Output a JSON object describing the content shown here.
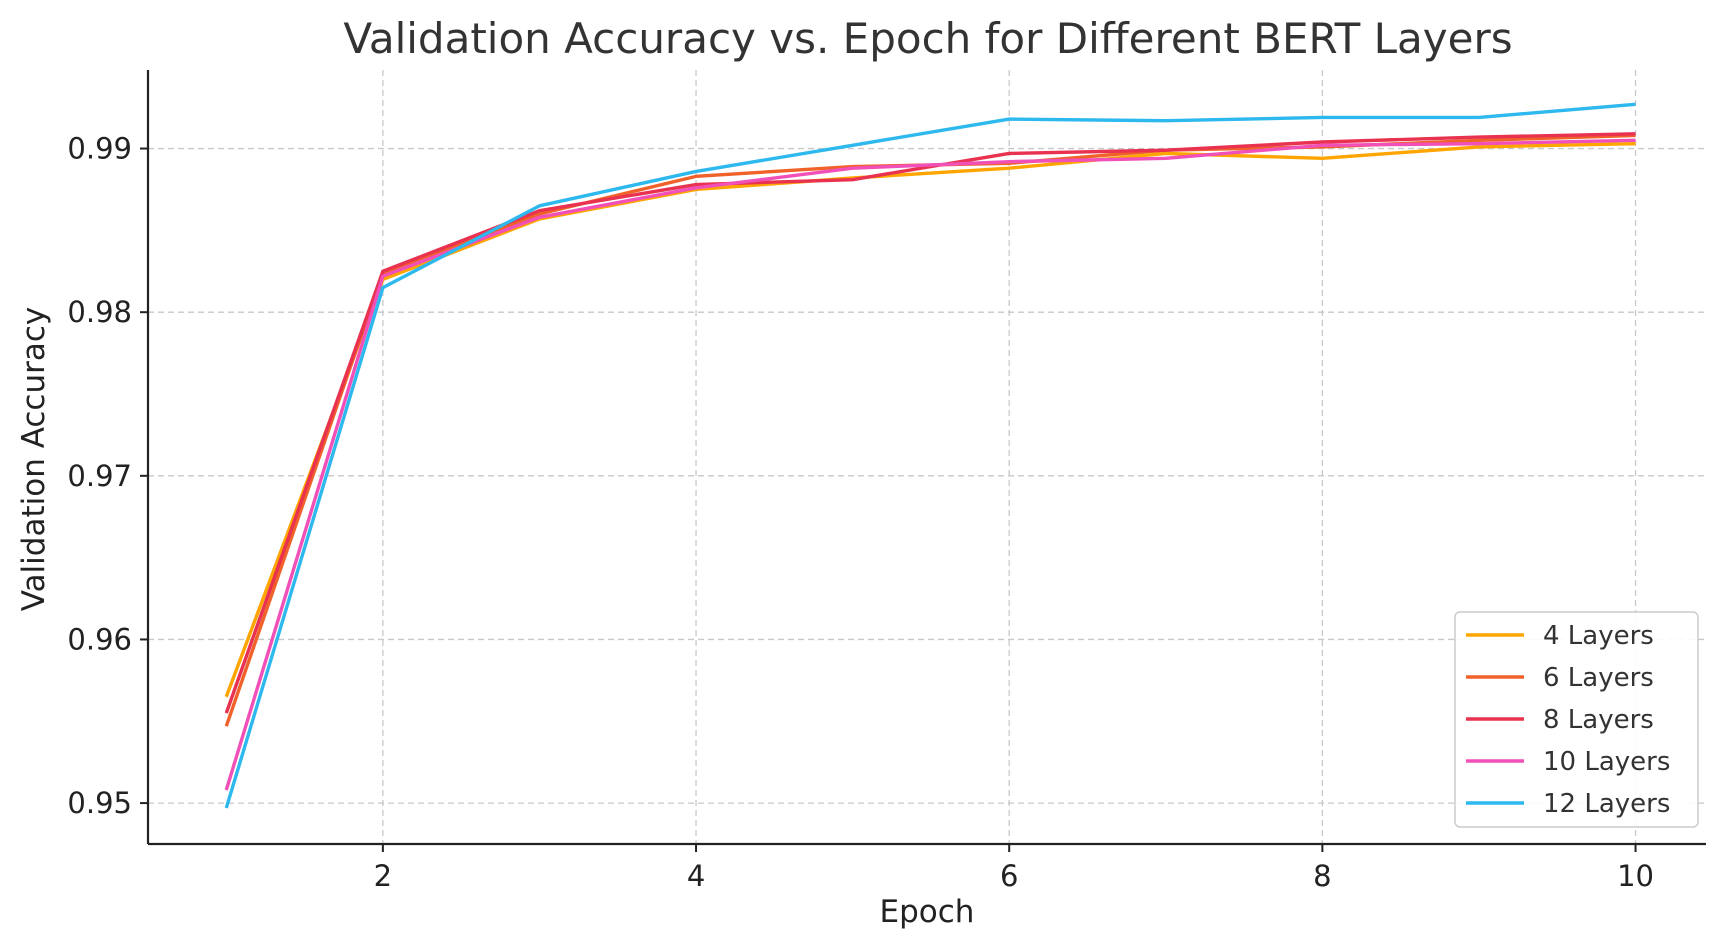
{
  "chart_data": {
    "type": "line",
    "title": "Validation Accuracy vs. Epoch for Different BERT Layers",
    "xlabel": "Epoch",
    "ylabel": "Validation Accuracy",
    "xlim": [
      0.5,
      10.45
    ],
    "ylim": [
      0.9475,
      0.9948
    ],
    "xticks": [
      2,
      4,
      6,
      8,
      10
    ],
    "yticks": [
      0.95,
      0.96,
      0.97,
      0.98,
      0.99
    ],
    "xtick_labels": [
      "2",
      "4",
      "6",
      "8",
      "10"
    ],
    "ytick_labels": [
      "0.95",
      "0.96",
      "0.97",
      "0.98",
      "0.99"
    ],
    "grid": true,
    "legend_position": "lower-right",
    "x": [
      1,
      2,
      3,
      4,
      5,
      6,
      7,
      8,
      9,
      10
    ],
    "series": [
      {
        "name": "4 Layers",
        "color": "#FFA500",
        "values": [
          0.9565,
          0.982,
          0.9857,
          0.9875,
          0.9882,
          0.9888,
          0.9897,
          0.9894,
          0.9901,
          0.9903
        ]
      },
      {
        "name": "6 Layers",
        "color": "#F0622A",
        "values": [
          0.9547,
          0.9824,
          0.986,
          0.9883,
          0.9889,
          0.9891,
          0.9899,
          0.9901,
          0.9905,
          0.9908
        ]
      },
      {
        "name": "8 Layers",
        "color": "#E8324F",
        "values": [
          0.9555,
          0.9825,
          0.9862,
          0.9878,
          0.9881,
          0.9897,
          0.9899,
          0.9904,
          0.9907,
          0.9909
        ]
      },
      {
        "name": "10 Layers",
        "color": "#F050B8",
        "values": [
          0.9508,
          0.9822,
          0.9858,
          0.9876,
          0.9888,
          0.9892,
          0.9894,
          0.9902,
          0.9903,
          0.9905
        ]
      },
      {
        "name": "12 Layers",
        "color": "#2DB8EE",
        "values": [
          0.9497,
          0.9815,
          0.9865,
          0.9886,
          0.9902,
          0.9918,
          0.9917,
          0.9919,
          0.9919,
          0.9927
        ]
      }
    ]
  }
}
